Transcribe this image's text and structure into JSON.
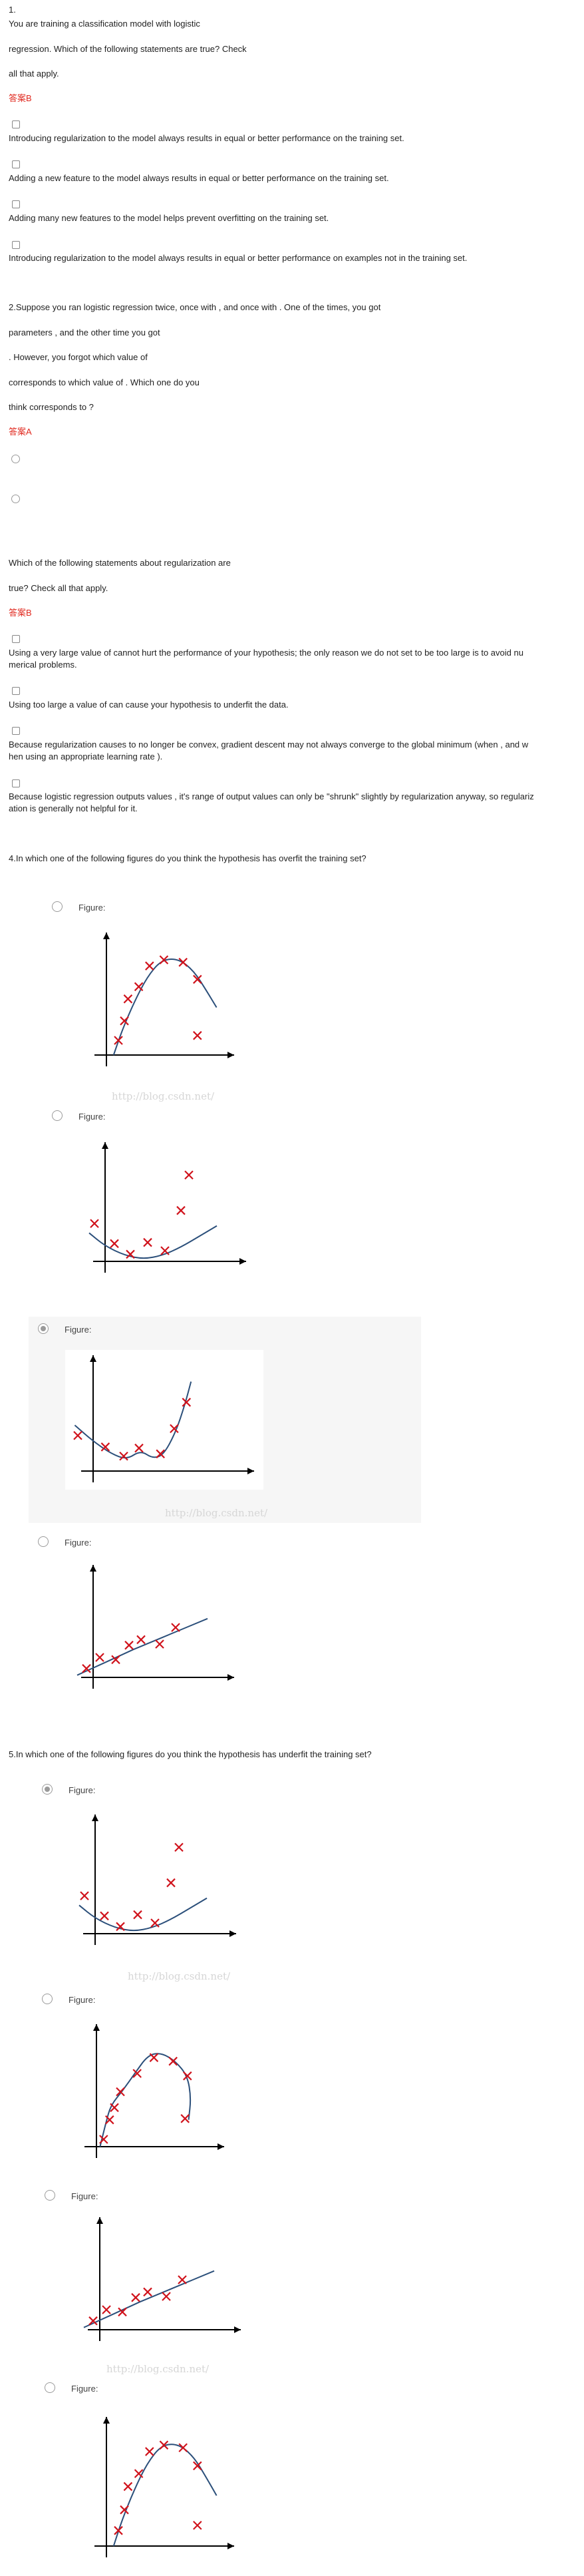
{
  "q1": {
    "number": "1.",
    "line1": "You are training a classification model with logistic",
    "line2": "regression. Which of the following statements are true? Check",
    "line3": "all that apply.",
    "answer": "答案B",
    "options": [
      "Introducing regularization to the model always results in equal or better performance on the training set.",
      "Adding a new feature to the model always results in equal or better performance on the training set.",
      "Adding many new features to the model helps prevent overfitting on the training set.",
      "Introducing regularization to the model always results in equal or better performance on examples not in the training set."
    ]
  },
  "q2": {
    "line1": "2.Suppose you ran logistic regression twice, once with , and once with . One of the times, you got",
    "line2": "parameters , and the other time you got",
    "line3": ". However, you forgot which value of",
    "line4": " corresponds to which value of . Which one do you",
    "line5": "think corresponds to ?",
    "answer": "答案A"
  },
  "q3": {
    "line1": "Which of the following statements about regularization are",
    "line2": "true? Check all that apply.",
    "answer": "答案B",
    "opt1_a": "Using a very large value of  cannot hurt the performance of your hypothesis; the only reason we do not set  to be too large is to avoid nu",
    "opt1_b": "merical problems.",
    "opt2": "Using too large a value of  can cause your hypothesis to underfit the data.",
    "opt3_a": "Because regularization causes  to no longer be convex, gradient descent may not always converge to the global minimum (when , and w",
    "opt3_b": "hen using an appropriate learning rate ).",
    "opt4_a": "Because logistic regression outputs values , it's range of output values can only be \"shrunk\" slightly by regularization anyway, so regulariz",
    "opt4_b": "ation is generally not helpful for it."
  },
  "q4": {
    "question": "4.In which one of the following figures do you think the hypothesis has overfit the training set?",
    "figure_label": "Figure:"
  },
  "q5": {
    "question": "5.In which one of the following figures do you think the hypothesis has underfit the training set?",
    "figure_label": "Figure:"
  },
  "watermark": "http://blog.csdn.net/",
  "colors": {
    "answer": "#e0281e",
    "curve": "#2b4f7a",
    "cross": "#d0121b"
  },
  "figures": {
    "hump": {
      "crosses": [
        [
          1,
          1.2
        ],
        [
          1.5,
          2.8
        ],
        [
          1.8,
          4.6
        ],
        [
          2.7,
          5.6
        ],
        [
          3.6,
          7.3
        ],
        [
          4.8,
          7.8
        ],
        [
          6.4,
          7.6
        ],
        [
          7.6,
          6.2
        ],
        [
          7.6,
          1.6
        ]
      ]
    },
    "quad": {
      "crosses": [
        [
          -0.8,
          3.2
        ],
        [
          0.7,
          1.5
        ],
        [
          1.9,
          0.6
        ],
        [
          3.2,
          1.6
        ],
        [
          4.5,
          0.9
        ],
        [
          5.7,
          4.3
        ],
        [
          6.3,
          7.3
        ]
      ]
    },
    "wiggle": {
      "crosses": [
        [
          -1,
          3.1
        ],
        [
          0.8,
          2.1
        ],
        [
          2.0,
          1.3
        ],
        [
          3.0,
          2.0
        ],
        [
          4.4,
          1.5
        ],
        [
          5.3,
          3.7
        ],
        [
          6.1,
          6.0
        ]
      ]
    },
    "linear": {
      "crosses": [
        [
          -0.5,
          0.8
        ],
        [
          0.5,
          1.8
        ],
        [
          1.7,
          1.6
        ],
        [
          2.7,
          2.9
        ],
        [
          3.6,
          3.4
        ],
        [
          5.0,
          3.0
        ],
        [
          6.2,
          4.5
        ]
      ]
    },
    "quad5": {
      "crosses": [
        [
          -0.8,
          3.2
        ],
        [
          0.7,
          1.5
        ],
        [
          1.9,
          0.6
        ],
        [
          3.2,
          1.6
        ],
        [
          4.5,
          0.9
        ],
        [
          5.7,
          4.3
        ],
        [
          6.3,
          7.3
        ]
      ]
    },
    "loop": {
      "crosses": [
        [
          0.6,
          0.6
        ],
        [
          1.1,
          2.2
        ],
        [
          1.5,
          3.2
        ],
        [
          2.0,
          4.5
        ],
        [
          3.4,
          6.0
        ],
        [
          4.8,
          7.3
        ],
        [
          6.4,
          7.0
        ],
        [
          7.6,
          5.8
        ],
        [
          7.4,
          2.3
        ]
      ]
    },
    "linear5": {
      "crosses": [
        [
          -0.5,
          0.8
        ],
        [
          0.5,
          1.8
        ],
        [
          1.7,
          1.6
        ],
        [
          2.7,
          2.9
        ],
        [
          3.6,
          3.4
        ],
        [
          5.0,
          3.0
        ],
        [
          6.2,
          4.5
        ]
      ]
    },
    "hump5": {
      "crosses": [
        [
          1,
          1.2
        ],
        [
          1.5,
          2.8
        ],
        [
          1.8,
          4.6
        ],
        [
          2.7,
          5.6
        ],
        [
          3.6,
          7.3
        ],
        [
          4.8,
          7.8
        ],
        [
          6.4,
          7.6
        ],
        [
          7.6,
          6.2
        ],
        [
          7.6,
          1.6
        ]
      ]
    }
  }
}
